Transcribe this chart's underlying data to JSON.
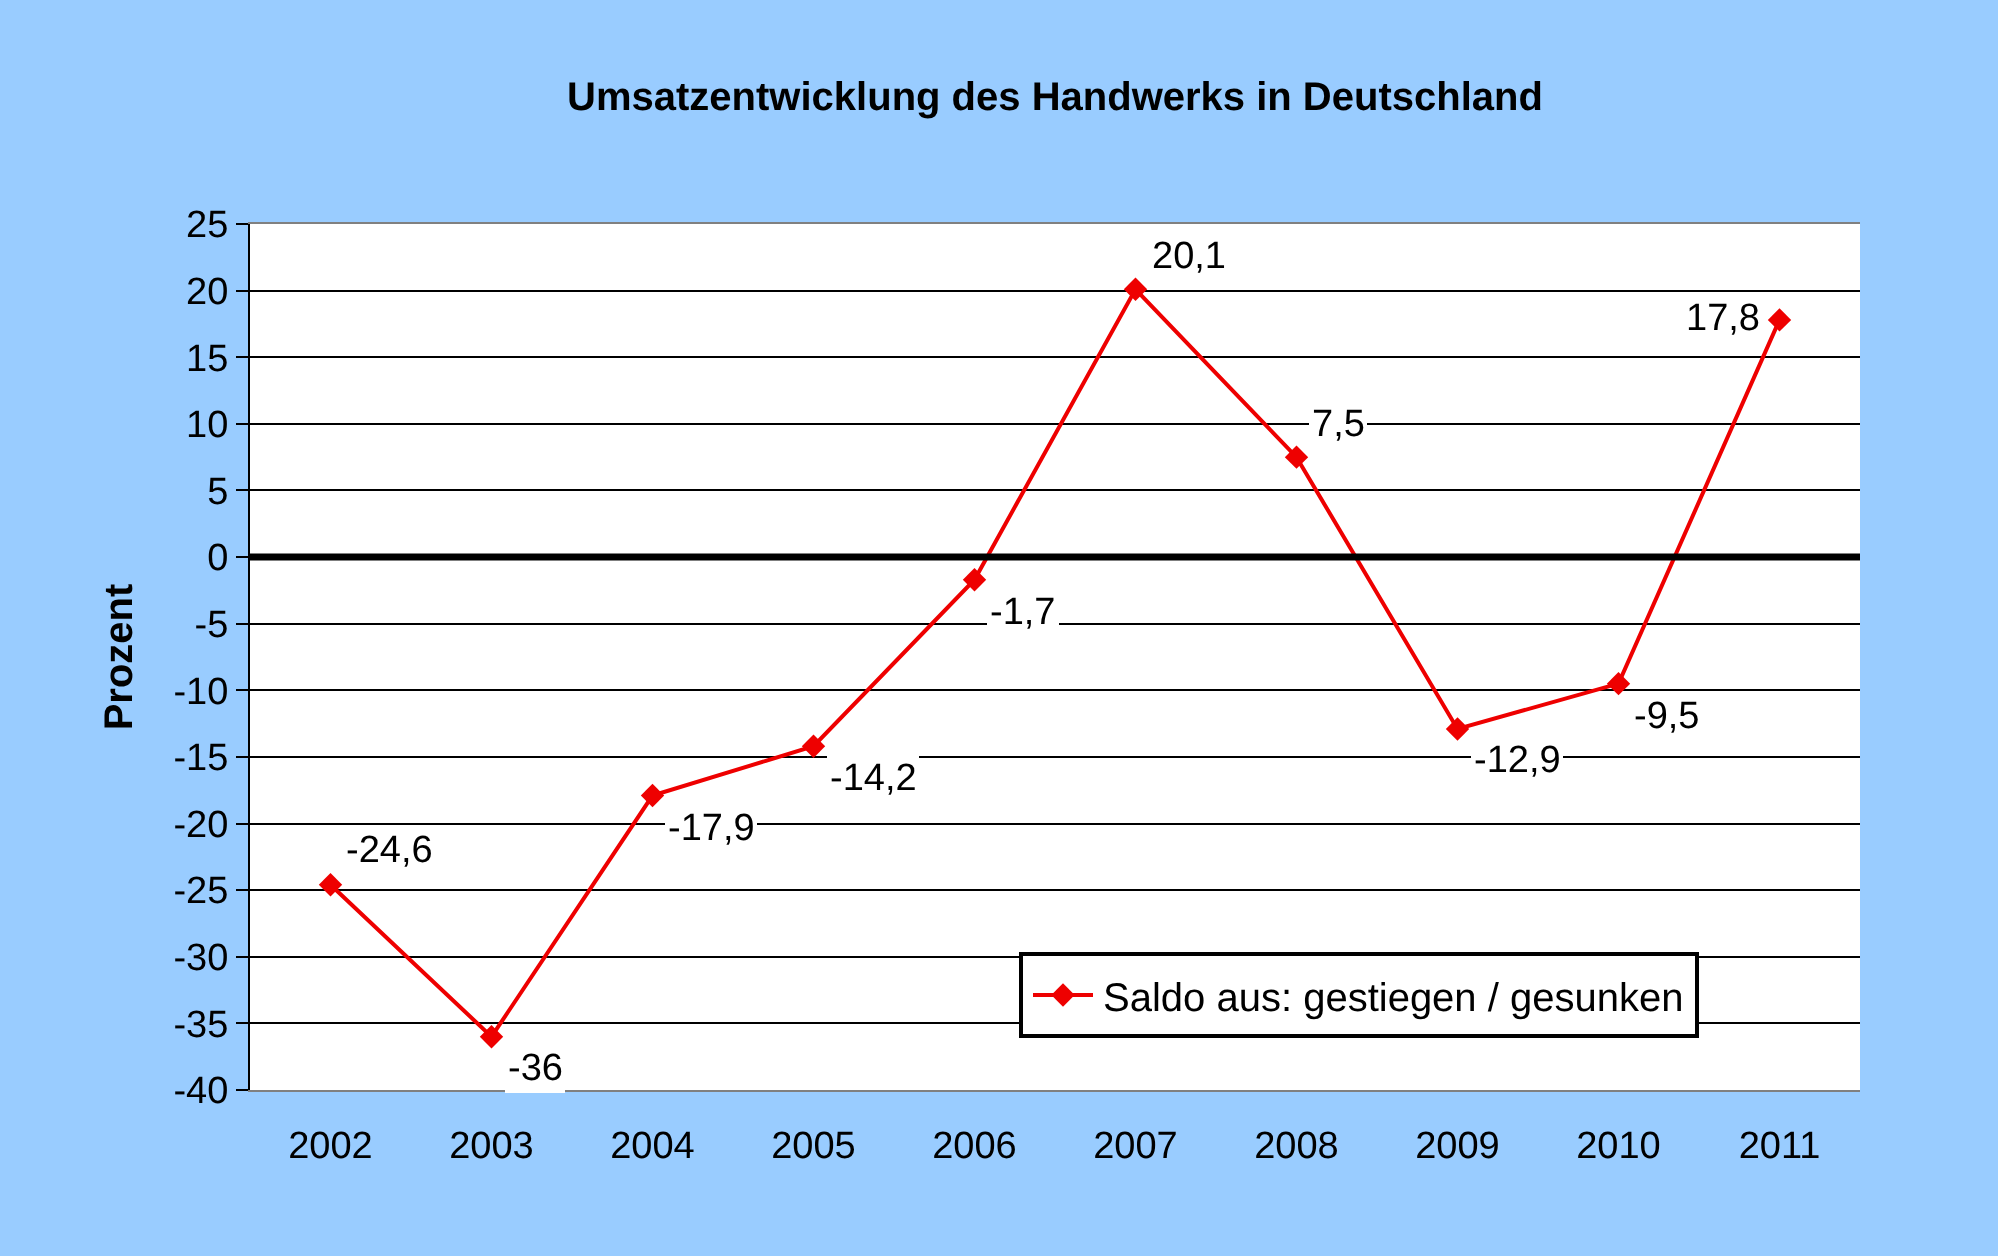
{
  "chart_data": {
    "type": "line",
    "title": "Umsatzentwicklung des Handwerks in Deutschland",
    "ylabel": "Prozent",
    "categories": [
      "2002",
      "2003",
      "2004",
      "2005",
      "2006",
      "2007",
      "2008",
      "2009",
      "2010",
      "2011"
    ],
    "series": [
      {
        "name": "Saldo aus: gestiegen / gesunken",
        "color": "#ee0000",
        "values": [
          -24.6,
          -36,
          -17.9,
          -14.2,
          -1.7,
          20.1,
          7.5,
          -12.9,
          -9.5,
          17.8
        ],
        "value_labels": [
          "-24,6",
          "-36",
          "-17,9",
          "-14,2",
          "-1,7",
          "20,1",
          "7,5",
          "-12,9",
          "-9,5",
          "17,8"
        ]
      }
    ],
    "ylim": [
      -40,
      25
    ],
    "yticks": [
      -40,
      -35,
      -30,
      -25,
      -20,
      -15,
      -10,
      -5,
      0,
      5,
      10,
      15,
      20,
      25
    ],
    "ref_lines": [
      {
        "axis": "y",
        "value": 0,
        "color": "#000000"
      }
    ],
    "grid": "y",
    "legend": "bottom right",
    "marker": "diamond",
    "line_style": "solid"
  }
}
